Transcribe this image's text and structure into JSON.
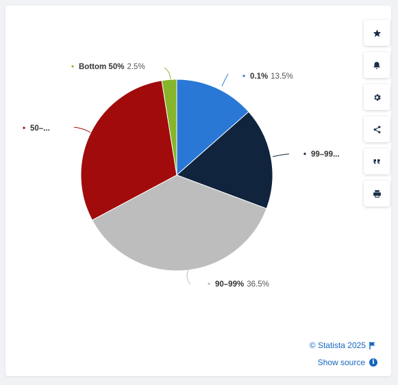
{
  "chart_data": {
    "type": "pie",
    "slices": [
      {
        "label": "0.1%",
        "value": 13.5,
        "color": "#2a78d6",
        "label_text": "0.1%",
        "value_text": "13.5%"
      },
      {
        "label": "99–99...",
        "value": 17.2,
        "color": "#10243e",
        "label_text": "99–99...",
        "value_text": ""
      },
      {
        "label": "90–99%",
        "value": 36.5,
        "color": "#bdbdbd",
        "label_text": "90–99%",
        "value_text": "36.5%"
      },
      {
        "label": "50–...",
        "value": 30.3,
        "color": "#a10b0b",
        "label_text": "50–...",
        "value_text": ""
      },
      {
        "label": "Bottom 50%",
        "value": 2.5,
        "color": "#86b52b",
        "label_text": "Bottom 50%",
        "value_text": "2.5%"
      }
    ]
  },
  "toolbar": {
    "buttons": [
      {
        "name": "favorite-button",
        "icon": "star-icon"
      },
      {
        "name": "notification-button",
        "icon": "bell-icon"
      },
      {
        "name": "settings-button",
        "icon": "gear-icon"
      },
      {
        "name": "share-button",
        "icon": "share-icon"
      },
      {
        "name": "cite-button",
        "icon": "quote-icon"
      },
      {
        "name": "print-button",
        "icon": "print-icon"
      }
    ]
  },
  "footer": {
    "credit": "© Statista 2025",
    "source_link": "Show source"
  },
  "colors": {
    "accent": "#1565c0"
  }
}
